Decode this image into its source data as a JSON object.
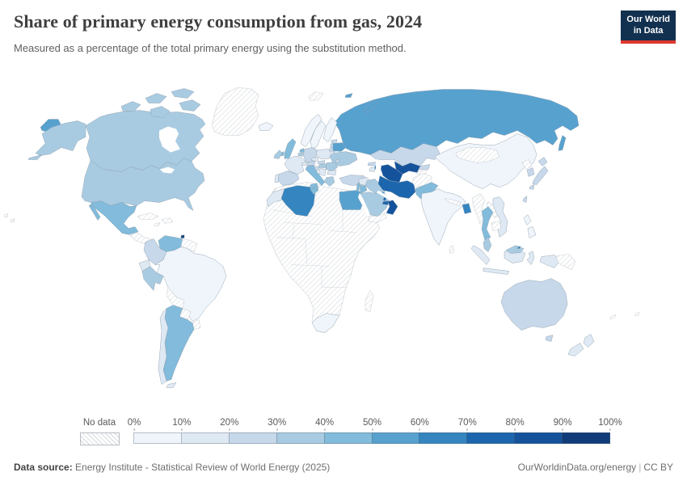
{
  "header": {
    "title": "Share of primary energy consumption from gas, 2024",
    "subtitle": "Measured as a percentage of the total primary energy using the substitution method.",
    "logo": {
      "line1": "Our World",
      "line2": "in Data",
      "bg": "#12304f",
      "accent": "#dc382d"
    }
  },
  "legend": {
    "no_data_label": "No data",
    "tick_labels": [
      "0%",
      "10%",
      "20%",
      "30%",
      "40%",
      "50%",
      "60%",
      "70%",
      "80%",
      "90%",
      "100%"
    ],
    "bin_colors": [
      "#eff5fb",
      "#dfe9f4",
      "#c7d8eb",
      "#a9cbe2",
      "#82bbdb",
      "#57a1cf",
      "#3585c0",
      "#1c66ad",
      "#14529c",
      "#113c79"
    ]
  },
  "footer": {
    "source_label": "Data source:",
    "source_text": " Energy Institute - Statistical Review of World Energy (2025)",
    "site": "OurWorldinData.org/energy",
    "divider": "|",
    "license": "CC BY"
  },
  "map": {
    "border_color": "#8fa0ae",
    "regions": {
      "greenland": -1,
      "iceland": 0,
      "canada": 3,
      "arctic-1": 3,
      "arctic-2": 3,
      "arctic-3": 3,
      "arctic-4": 3,
      "arctic-5": 3,
      "alaska": 3,
      "chukotka": 5,
      "usa": 3,
      "mexico": 4,
      "central-america": -1,
      "cuba": -1,
      "hispaniola": -1,
      "jamaica": -1,
      "trinidad-and-tobago": 9,
      "venezuela": 4,
      "colombia": 2,
      "ecuador": 1,
      "peru": 3,
      "brazil": 0,
      "bolivia": -1,
      "paraguay": -1,
      "uruguay": -1,
      "argentina": 4,
      "chile": 1,
      "tierra-del-fuego": 1,
      "guyanas": -1,
      "norway": 0,
      "sweden": 0,
      "finland": 0,
      "denmark": 1,
      "estonia": 2,
      "latvia": 2,
      "lithuania": 2,
      "united-kingdom": 4,
      "ireland": 3,
      "netherlands": 4,
      "belgium": 3,
      "germany": 2,
      "france": 1,
      "spain": 2,
      "portugal": 1,
      "switzerland": 1,
      "austria": 2,
      "czechia": 1,
      "poland": 1,
      "slovakia": 2,
      "hungary": 3,
      "romania": 3,
      "bulgaria": 1,
      "serbia": 1,
      "croatia": 2,
      "greece": 3,
      "italy": 4,
      "sicily": 4,
      "ukraine": 3,
      "belarus": 5,
      "moldova": 2,
      "turkey": 2,
      "russia": 5,
      "svalbard": -1,
      "novaya-zemlya": 5,
      "franz-josef": 5,
      "sakhalin": 5,
      "kazakhstan": 2,
      "uzbekistan": 8,
      "turkmenistan": 8,
      "kyrgyzstan": 2,
      "tajikistan": -1,
      "azerbaijan": 6,
      "georgia": 2,
      "armenia": 1,
      "syria": 1,
      "israel": 4,
      "jordan": 4,
      "iraq": 3,
      "kuwait": 5,
      "iran": 7,
      "afghanistan": -1,
      "pakistan": 4,
      "saudi-arabia": 3,
      "yemen": -1,
      "oman": 8,
      "uae": 7,
      "qatar": 7,
      "africa": -1,
      "morocco": 1,
      "algeria": 6,
      "tunisia": 4,
      "egypt": 5,
      "south-africa": 0,
      "madagascar": -1,
      "china": 0,
      "mongolia": -1,
      "india": 0,
      "nepal": -1,
      "bangladesh": 6,
      "sri-lanka": -1,
      "myanmar": -1,
      "thailand": 4,
      "laos": -1,
      "cambodia": -1,
      "vietnam": 1,
      "malaysia-peninsula": 3,
      "malaysia-borneo": 3,
      "brunei": 6,
      "sumatra": 1,
      "java": 1,
      "kalimantan": 1,
      "sulawesi": 1,
      "papua-indonesia": 1,
      "papua-new-guinea": -1,
      "philippines-north": 0,
      "philippines-south": 0,
      "taiwan": 2,
      "south-korea": 2,
      "north-korea": -1,
      "hokkaido": 2,
      "honshu": 2,
      "kyushu": 2,
      "australia": 2,
      "tasmania": 2,
      "nz-north": 1,
      "nz-south": 1,
      "new-caledonia": -1,
      "fiji": -1,
      "pacific-speck-1": -1,
      "pacific-speck-2": -1
    }
  },
  "chart_data": {
    "type": "choropleth",
    "title": "Share of primary energy consumption from gas, 2024",
    "subtitle": "Measured as a percentage of the total primary energy using the substitution method.",
    "unit": "%",
    "legend_bins": [
      "0-10%",
      "10-20%",
      "20-30%",
      "30-40%",
      "40-50%",
      "50-60%",
      "60-70%",
      "70-80%",
      "80-90%",
      "90-100%"
    ],
    "no_data": "hatched",
    "values": {
      "United States": "30-40%",
      "Canada": "30-40%",
      "Greenland": "No data",
      "Iceland": "0-10%",
      "Mexico": "40-50%",
      "Central America": "No data",
      "Cuba": "No data",
      "Haiti/Dominican Rep.": "No data",
      "Jamaica": "No data",
      "Trinidad and Tobago": "90-100%",
      "Venezuela": "40-50%",
      "Colombia": "20-30%",
      "Ecuador": "10-20%",
      "Peru": "30-40%",
      "Brazil": "0-10%",
      "Bolivia": "No data",
      "Paraguay": "No data",
      "Uruguay": "No data",
      "Argentina": "40-50%",
      "Chile": "10-20%",
      "Guyana/Suriname": "No data",
      "United Kingdom": "40-50%",
      "Ireland": "30-40%",
      "Norway": "0-10%",
      "Sweden": "0-10%",
      "Finland": "0-10%",
      "Denmark": "10-20%",
      "France": "10-20%",
      "Spain": "20-30%",
      "Portugal": "10-20%",
      "Germany": "20-30%",
      "Netherlands": "40-50%",
      "Belgium": "30-40%",
      "Poland": "10-20%",
      "Czechia": "10-20%",
      "Austria": "20-30%",
      "Switzerland": "10-20%",
      "Italy": "40-50%",
      "Greece": "30-40%",
      "Hungary": "30-40%",
      "Romania": "30-40%",
      "Bulgaria": "10-20%",
      "Serbia": "10-20%",
      "Croatia": "20-30%",
      "Estonia": "20-30%",
      "Latvia": "20-30%",
      "Lithuania": "20-30%",
      "Moldova": "20-30%",
      "Belarus": "50-60%",
      "Ukraine": "30-40%",
      "Turkey": "20-30%",
      "Russia": "50-60%",
      "Kazakhstan": "20-30%",
      "Uzbekistan": "80-90%",
      "Turkmenistan": "80-90%",
      "Kyrgyzstan": "20-30%",
      "Tajikistan": "No data",
      "Azerbaijan": "60-70%",
      "Georgia": "20-30%",
      "Armenia": "10-20%",
      "Syria": "10-20%",
      "Israel": "40-50%",
      "Jordan": "40-50%",
      "Iraq": "30-40%",
      "Kuwait": "50-60%",
      "Iran": "70-80%",
      "Afghanistan": "No data",
      "Pakistan": "40-50%",
      "Saudi Arabia": "30-40%",
      "Yemen": "No data",
      "Oman": "80-90%",
      "United Arab Emirates": "70-80%",
      "Qatar": "70-80%",
      "Morocco": "10-20%",
      "Algeria": "60-70%",
      "Tunisia": "40-50%",
      "Libya": "No data",
      "Egypt": "50-60%",
      "South Africa": "0-10%",
      "Madagascar": "No data",
      "Rest of Africa": "No data",
      "China": "0-10%",
      "Mongolia": "No data",
      "India": "0-10%",
      "Nepal": "No data",
      "Bangladesh": "60-70%",
      "Sri Lanka": "No data",
      "Myanmar": "No data",
      "Thailand": "40-50%",
      "Laos": "No data",
      "Cambodia": "No data",
      "Vietnam": "10-20%",
      "Malaysia": "30-40%",
      "Brunei": "60-70%",
      "Indonesia": "10-20%",
      "Philippines": "0-10%",
      "Taiwan": "20-30%",
      "South Korea": "20-30%",
      "North Korea": "No data",
      "Japan": "20-30%",
      "Papua New Guinea": "No data",
      "Australia": "20-30%",
      "New Zealand": "10-20%",
      "New Caledonia": "No data",
      "Fiji": "No data"
    }
  }
}
